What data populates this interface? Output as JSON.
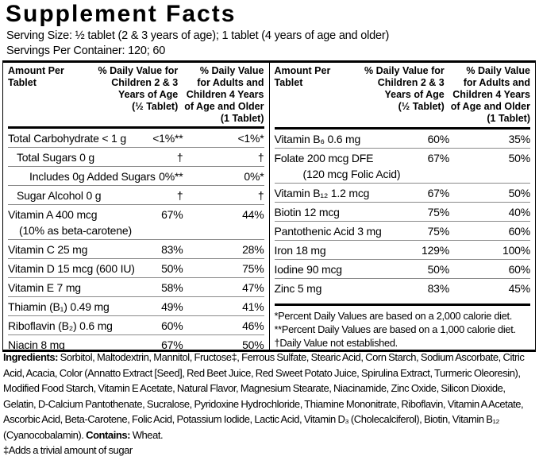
{
  "title": "Supplement Facts",
  "serving": {
    "size": "Serving Size: ½ tablet (2 & 3 years of age); 1 tablet (4 years of age and older)",
    "per_container": "Servings Per Container: 120; 60"
  },
  "table": {
    "header": {
      "amount": "Amount Per\nTablet",
      "col1": "% Daily Value for\nChildren 2 & 3\nYears of Age\n(½ Tablet)",
      "col2": "% Daily Value\nfor Adults and\nChildren 4 Years\nof Age and Older\n(1 Tablet)"
    },
    "left_rows": [
      {
        "name": "Total Carbohydrate < 1 g",
        "indent": 0,
        "dv1": "<1%**",
        "dv2": "<1%*"
      },
      {
        "name": "Total Sugars 0 g",
        "indent": 1,
        "dv1": "†",
        "dv2": "†"
      },
      {
        "name": "Includes 0g Added Sugars",
        "indent": 2,
        "dv1": "0%**",
        "dv2": "0%*"
      },
      {
        "name": "Sugar Alcohol 0 g",
        "indent": 1,
        "dv1": "†",
        "dv2": "†"
      },
      {
        "name": "Vitamin A 400 mcg",
        "name2": "(10% as beta-carotene)",
        "sub_indent": 14,
        "indent": 0,
        "dv1": "67%",
        "dv2": "44%"
      },
      {
        "name": "Vitamin C 25 mg",
        "indent": 0,
        "dv1": "83%",
        "dv2": "28%"
      },
      {
        "name": "Vitamin D 15 mcg (600 IU)",
        "indent": 0,
        "dv1": "50%",
        "dv2": "75%"
      },
      {
        "name": "Vitamin E 7 mg",
        "indent": 0,
        "dv1": "58%",
        "dv2": "47%"
      },
      {
        "name": "Thiamin (B₁) 0.49 mg",
        "indent": 0,
        "dv1": "49%",
        "dv2": "41%"
      },
      {
        "name": "Riboflavin (B₂) 0.6 mg",
        "indent": 0,
        "dv1": "60%",
        "dv2": "46%"
      },
      {
        "name": "Niacin 8 mg",
        "indent": 0,
        "dv1": "67%",
        "dv2": "50%"
      }
    ],
    "right_rows": [
      {
        "name": "Vitamin B₆ 0.6 mg",
        "indent": 0,
        "dv1": "60%",
        "dv2": "35%"
      },
      {
        "name": "Folate 200 mcg DFE",
        "name2": "(120 mcg Folic Acid)",
        "sub_indent": 36,
        "indent": 0,
        "dv1": "67%",
        "dv2": "50%"
      },
      {
        "name": "Vitamin B₁₂ 1.2 mcg",
        "indent": 0,
        "dv1": "67%",
        "dv2": "50%"
      },
      {
        "name": "Biotin 12 mcg",
        "indent": 0,
        "dv1": "75%",
        "dv2": "40%"
      },
      {
        "name": "Pantothenic Acid 3 mg",
        "indent": 0,
        "dv1": "75%",
        "dv2": "60%"
      },
      {
        "name": "Iron 18 mg",
        "indent": 0,
        "dv1": "129%",
        "dv2": "100%"
      },
      {
        "name": "Iodine 90 mcg",
        "indent": 0,
        "dv1": "50%",
        "dv2": "60%"
      },
      {
        "name": "Zinc 5 mg",
        "indent": 0,
        "dv1": "83%",
        "dv2": "45%"
      }
    ],
    "footnotes": [
      "*Percent Daily Values are based on a 2,000 calorie diet.",
      "**Percent Daily Values are based on a 1,000 calorie diet.",
      "†Daily Value not established."
    ]
  },
  "ingredients": {
    "label": "Ingredients:",
    "text": " Sorbitol, Maltodextrin, Mannitol, Fructose‡, Ferrous Sulfate, Stearic Acid, Corn Starch, Sodium Ascorbate, Citric Acid, Acacia, Color (Annatto Extract [Seed], Red Beet Juice, Red Sweet Potato Juice, Spirulina Extract, Turmeric Oleoresin), Modified Food Starch, Vitamin E Acetate, Natural Flavor, Magnesium Stearate, Niacinamide, Zinc Oxide, Silicon Dioxide, Gelatin, D-Calcium Pantothenate, Sucralose, Pyridoxine Hydrochloride, Thiamine Mononitrate, Riboflavin, Vitamin A Acetate, Ascorbic Acid, Beta-Carotene, Folic Acid, Potassium Iodide, Lactic Acid, Vitamin D₃ (Cholecalciferol), Biotin, Vitamin B₁₂ (Cyanocobalamin). ",
    "contains_label": "Contains:",
    "contains_text": " Wheat.",
    "footnote": "‡Adds a trivial amount of sugar"
  },
  "colors": {
    "text": "#000000",
    "hairline": "#8a8a8a",
    "background": "#ffffff"
  }
}
